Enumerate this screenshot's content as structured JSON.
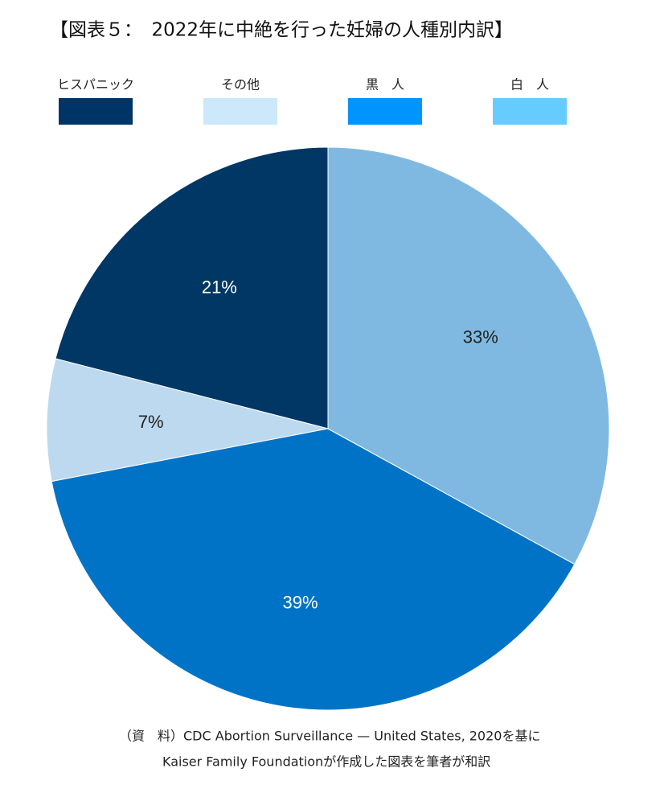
{
  "chart_data": {
    "type": "pie",
    "title": "【図表５：　2022年に中絶を行った妊婦の人種別内訳】",
    "categories": [
      "ヒスパニック",
      "その他",
      "黒　人",
      "白　人"
    ],
    "values": [
      21,
      7,
      39,
      33
    ],
    "value_labels": [
      "21%",
      "7%",
      "39%",
      "33%"
    ],
    "colors": [
      "#003764",
      "#bdd9ef",
      "#0073c6",
      "#7fb9e2"
    ],
    "legend_colors": [
      "#003366",
      "#cce8fb",
      "#0094ff",
      "#66ccff"
    ],
    "counterclockwise": true,
    "source": [
      "（資　料）CDC Abortion Surveillance — United States, 2020を基に",
      "Kaiser Family Foundationが作成した図表を筆者が和訳"
    ]
  }
}
